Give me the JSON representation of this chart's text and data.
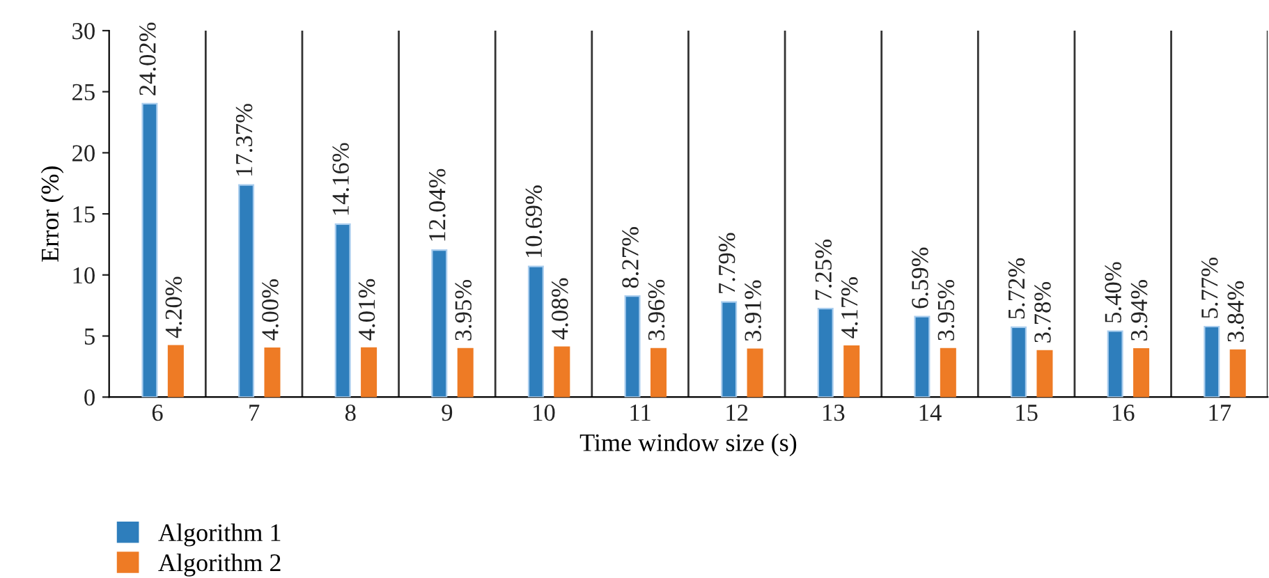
{
  "chart_data": {
    "type": "bar",
    "xlabel": "Time window size (s)",
    "ylabel": "Error (%)",
    "categories": [
      "6",
      "7",
      "8",
      "9",
      "10",
      "11",
      "12",
      "13",
      "14",
      "15",
      "16",
      "17"
    ],
    "series": [
      {
        "name": "Algorithm 1",
        "color": "#2e7ebc",
        "values": [
          24.02,
          17.37,
          14.16,
          12.04,
          10.69,
          8.27,
          7.79,
          7.25,
          6.59,
          5.72,
          5.4,
          5.77
        ],
        "value_labels": [
          "24.02%",
          "17.37%",
          "14.16%",
          "12.04%",
          "10.69%",
          "8.27%",
          "7.79%",
          "7.25%",
          "6.59%",
          "5.72%",
          "5.40%",
          "5.77%"
        ]
      },
      {
        "name": "Algorithm 2",
        "color": "#ee7b25",
        "values": [
          4.2,
          4.0,
          4.01,
          3.95,
          4.08,
          3.96,
          3.91,
          4.17,
          3.95,
          3.78,
          3.94,
          3.84
        ],
        "value_labels": [
          "4.20%",
          "4.00%",
          "4.01%",
          "3.95%",
          "4.08%",
          "3.96%",
          "3.91%",
          "4.17%",
          "3.95%",
          "3.78%",
          "3.94%",
          "3.84%"
        ]
      }
    ],
    "ylim": [
      0,
      30
    ],
    "yticks": [
      0,
      5,
      10,
      15,
      20,
      25,
      30
    ],
    "grid": "x",
    "legend": "bottom left"
  }
}
